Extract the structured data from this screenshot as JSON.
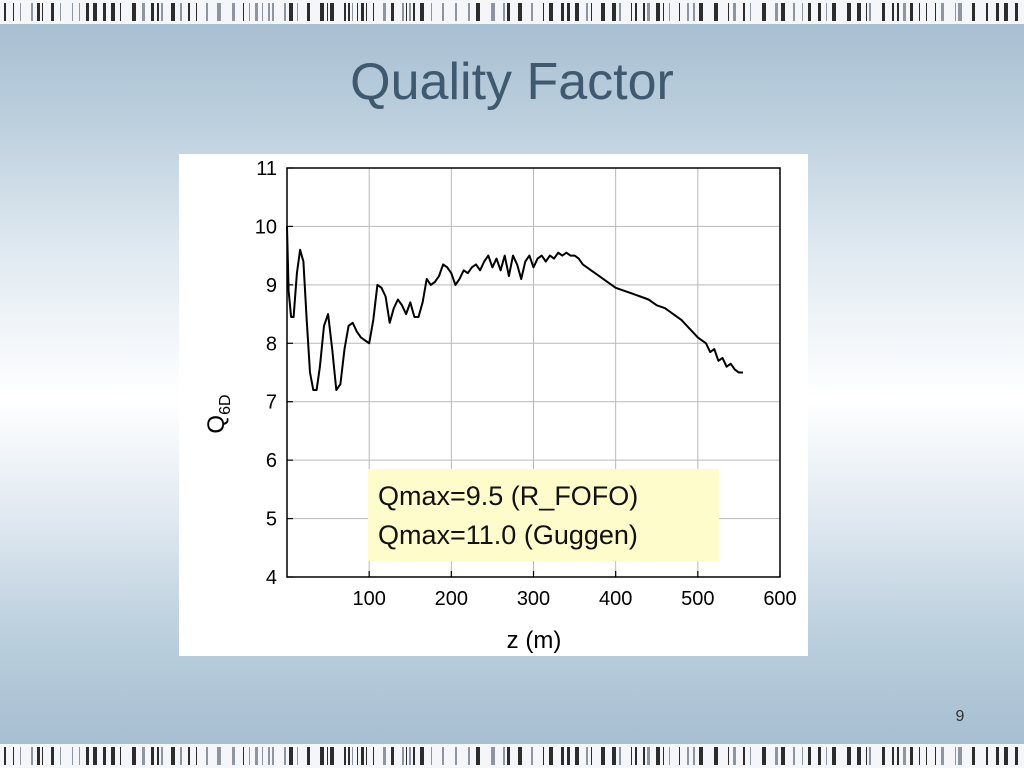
{
  "slide": {
    "title": "Quality Factor",
    "page_number": "9"
  },
  "annotation": {
    "lines": [
      "Qmax=9.5 (R_FOFO)",
      "Qmax=11.0 (Guggen)"
    ]
  },
  "chart_data": {
    "type": "line",
    "xlabel": "z (m)",
    "ylabel": "Q",
    "ylabel_subscript": "6D",
    "xlim": [
      0,
      600
    ],
    "ylim": [
      4,
      11
    ],
    "xticks": [
      100,
      200,
      300,
      400,
      500,
      600
    ],
    "yticks": [
      4,
      5,
      6,
      7,
      8,
      9,
      10,
      11
    ],
    "grid": true,
    "series": [
      {
        "color": "#000000",
        "x": [
          0,
          2,
          5,
          8,
          12,
          16,
          20,
          24,
          28,
          32,
          36,
          40,
          45,
          50,
          55,
          60,
          65,
          70,
          75,
          80,
          85,
          90,
          95,
          100,
          105,
          110,
          115,
          120,
          125,
          130,
          135,
          140,
          145,
          150,
          155,
          160,
          165,
          170,
          175,
          180,
          185,
          190,
          195,
          200,
          205,
          210,
          215,
          220,
          225,
          230,
          235,
          240,
          245,
          250,
          255,
          260,
          265,
          270,
          275,
          280,
          285,
          290,
          295,
          300,
          305,
          310,
          315,
          320,
          325,
          330,
          335,
          340,
          345,
          350,
          355,
          360,
          365,
          370,
          375,
          380,
          390,
          400,
          410,
          420,
          430,
          440,
          450,
          460,
          470,
          480,
          490,
          500,
          510,
          515,
          520,
          525,
          530,
          535,
          540,
          545,
          550,
          555
        ],
        "y": [
          10.0,
          8.9,
          8.45,
          8.45,
          9.2,
          9.6,
          9.4,
          8.4,
          7.5,
          7.2,
          7.2,
          7.6,
          8.3,
          8.5,
          7.9,
          7.2,
          7.3,
          7.9,
          8.3,
          8.35,
          8.2,
          8.1,
          8.05,
          8.0,
          8.4,
          9.0,
          8.95,
          8.8,
          8.35,
          8.6,
          8.75,
          8.65,
          8.5,
          8.7,
          8.45,
          8.45,
          8.7,
          9.1,
          9.0,
          9.05,
          9.15,
          9.35,
          9.3,
          9.2,
          9.0,
          9.1,
          9.25,
          9.2,
          9.3,
          9.35,
          9.25,
          9.4,
          9.5,
          9.3,
          9.45,
          9.25,
          9.5,
          9.15,
          9.5,
          9.35,
          9.1,
          9.4,
          9.5,
          9.3,
          9.45,
          9.5,
          9.4,
          9.5,
          9.45,
          9.55,
          9.5,
          9.55,
          9.5,
          9.5,
          9.45,
          9.35,
          9.3,
          9.25,
          9.2,
          9.15,
          9.05,
          8.95,
          8.9,
          8.85,
          8.8,
          8.75,
          8.65,
          8.6,
          8.5,
          8.4,
          8.25,
          8.1,
          8.0,
          7.85,
          7.9,
          7.7,
          7.75,
          7.6,
          7.65,
          7.55,
          7.5,
          7.5
        ]
      }
    ]
  }
}
